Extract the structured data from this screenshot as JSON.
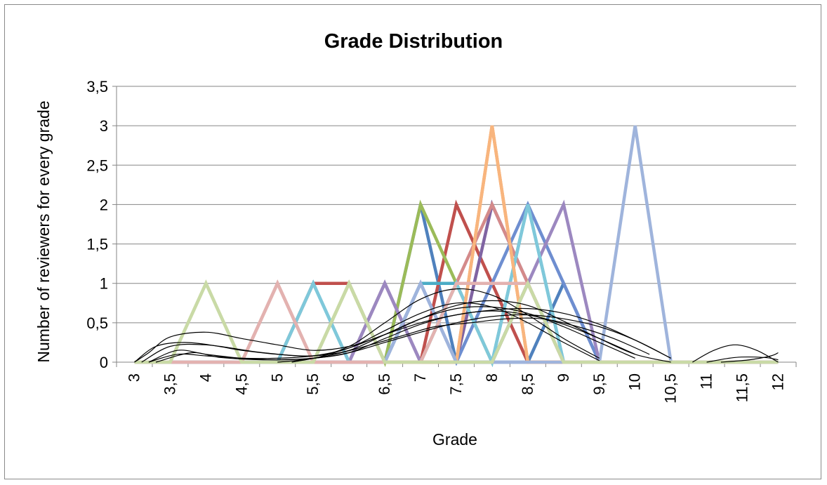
{
  "chart_data": {
    "type": "line",
    "title": "Grade Distribution",
    "xlabel": "Grade",
    "ylabel": "Number of reviewers for every grade",
    "x": [
      3,
      3.5,
      4,
      4.5,
      5,
      5.5,
      6,
      6.5,
      7,
      7.5,
      8,
      8.5,
      9,
      9.5,
      10,
      10.5,
      11,
      11.5,
      12
    ],
    "x_tick_labels": [
      "3",
      "3,5",
      "4",
      "4,5",
      "5",
      "5,5",
      "6",
      "6,5",
      "7",
      "7,5",
      "8",
      "8,5",
      "9",
      "9,5",
      "10",
      "10,5",
      "11",
      "11,5",
      "12"
    ],
    "ylim": [
      0,
      3.5
    ],
    "y_ticks": [
      0,
      0.5,
      1,
      1.5,
      2,
      2.5,
      3,
      3.5
    ],
    "y_tick_labels": [
      "0",
      "0,5",
      "1",
      "1,5",
      "2",
      "2,5",
      "3",
      "3,5"
    ],
    "grid": "horizontal",
    "legend": "none",
    "series": [
      {
        "color": "#4F81BD",
        "values": [
          0,
          0,
          0,
          0,
          0,
          0,
          0,
          0,
          2,
          0,
          0,
          0,
          1,
          0,
          0,
          0,
          0,
          0,
          0
        ]
      },
      {
        "color": "#C0504D",
        "values": [
          0,
          0,
          0,
          0,
          0,
          1,
          1,
          0,
          0,
          2,
          1,
          0,
          0,
          0,
          0,
          0,
          0,
          0,
          0
        ]
      },
      {
        "color": "#9BBB59",
        "values": [
          0,
          0,
          0,
          0,
          0,
          0,
          1,
          0,
          2,
          1,
          0,
          1,
          0,
          0,
          0,
          0,
          0,
          0,
          0
        ]
      },
      {
        "color": "#8064A2",
        "values": [
          0,
          0,
          0,
          0,
          0,
          0,
          0,
          1,
          0,
          0,
          2,
          1,
          0,
          0,
          0,
          0,
          0,
          0,
          0
        ]
      },
      {
        "color": "#4BACC6",
        "values": [
          0,
          0,
          0,
          0,
          0,
          1,
          0,
          0,
          1,
          1,
          0,
          2,
          0,
          0,
          0,
          0,
          0,
          0,
          0
        ]
      },
      {
        "color": "#F79646",
        "values": [
          0,
          0,
          0,
          0,
          0,
          0,
          0,
          0,
          0,
          0,
          3,
          0,
          0,
          0,
          0,
          0,
          0,
          0,
          0
        ]
      },
      {
        "color": "#6E8ED0",
        "values": [
          0,
          0,
          0,
          0,
          0,
          0,
          0,
          0,
          1,
          0,
          1,
          2,
          1,
          0,
          0,
          0,
          0,
          0,
          0
        ]
      },
      {
        "color": "#D48A8A",
        "values": [
          0,
          0,
          0,
          0,
          1,
          0,
          0,
          0,
          0,
          1,
          2,
          1,
          0,
          0,
          0,
          0,
          0,
          0,
          0
        ]
      },
      {
        "color": "#C3D69B",
        "values": [
          0,
          0,
          1,
          0,
          0,
          0,
          1,
          0,
          0,
          1,
          0,
          1,
          0,
          0,
          0,
          0,
          0,
          0,
          0
        ]
      },
      {
        "color": "#9C88C0",
        "values": [
          0,
          0,
          0,
          0,
          0,
          0,
          0,
          1,
          0,
          0,
          0,
          1,
          2,
          0,
          0,
          0,
          0,
          0,
          0
        ]
      },
      {
        "color": "#7FC8DA",
        "values": [
          0,
          0,
          0,
          0,
          0,
          1,
          0,
          0,
          0,
          1,
          0,
          2,
          0,
          0,
          0,
          0,
          0,
          0,
          0
        ]
      },
      {
        "color": "#F8B57E",
        "values": [
          0,
          0,
          0,
          0,
          0,
          0,
          0,
          0,
          0,
          0,
          3,
          0,
          0,
          0,
          0,
          0,
          0,
          0,
          0
        ]
      },
      {
        "color": "#9FB4DC",
        "values": [
          0,
          0,
          0,
          0,
          0,
          0,
          0,
          0,
          1,
          0,
          0,
          0,
          0,
          0,
          3,
          0,
          0,
          0,
          0
        ]
      },
      {
        "color": "#E3B2B0",
        "values": [
          0,
          0,
          0,
          0,
          1,
          0,
          0,
          0,
          0,
          1,
          1,
          1,
          0,
          0,
          0,
          0,
          0,
          0,
          0
        ]
      },
      {
        "color": "#C9DAA6",
        "values": [
          0,
          0,
          1,
          0,
          0,
          0,
          1,
          0,
          0,
          0,
          0,
          1,
          0,
          0,
          0,
          0,
          0,
          0,
          0
        ]
      }
    ],
    "fitted_curves": {
      "color": "#000000",
      "description_free": true,
      "curves": [
        {
          "x": [
            3.0,
            3.2,
            3.5,
            4.0,
            4.5,
            5.0,
            5.5,
            6.0,
            6.5,
            7.0,
            7.5,
            8.0,
            8.5,
            9.0,
            9.5,
            10.0,
            10.5
          ],
          "values": [
            0,
            0.12,
            0.32,
            0.38,
            0.3,
            0.22,
            0.15,
            0.2,
            0.35,
            0.55,
            0.72,
            0.78,
            0.72,
            0.52,
            0.3,
            0.1,
            0
          ]
        },
        {
          "x": [
            3.0,
            3.3,
            3.7,
            4.2,
            4.8,
            5.5,
            6.0,
            6.5,
            7.0,
            7.5,
            8.0,
            8.5,
            9.0,
            9.5
          ],
          "values": [
            0,
            0.2,
            0.25,
            0.2,
            0.12,
            0.08,
            0.2,
            0.5,
            0.8,
            0.93,
            0.85,
            0.6,
            0.3,
            0.05
          ]
        },
        {
          "x": [
            3.1,
            3.5,
            4.0,
            4.5,
            5.0,
            5.5,
            6.0,
            6.5,
            7.0,
            7.5,
            8.0,
            8.5,
            9.0,
            9.5,
            10.0
          ],
          "values": [
            0,
            0.2,
            0.22,
            0.15,
            0.1,
            0.08,
            0.15,
            0.35,
            0.55,
            0.68,
            0.7,
            0.62,
            0.45,
            0.25,
            0.05
          ]
        },
        {
          "x": [
            3.2,
            3.6,
            4.0,
            4.5,
            5.0,
            5.5,
            6.0,
            6.5,
            7.0,
            7.5,
            8.0,
            8.5,
            9.0,
            9.5,
            10.0
          ],
          "values": [
            0,
            0.15,
            0.1,
            0.05,
            0.03,
            0.05,
            0.12,
            0.3,
            0.48,
            0.6,
            0.65,
            0.6,
            0.48,
            0.3,
            0.1
          ]
        },
        {
          "x": [
            3.2,
            3.6,
            4.0,
            4.5,
            5.0,
            5.5,
            6.0,
            6.5,
            7.0,
            7.5,
            8.0,
            8.5,
            9.0,
            9.5
          ],
          "values": [
            0,
            0.1,
            0.08,
            0.05,
            0.05,
            0.08,
            0.18,
            0.4,
            0.62,
            0.75,
            0.7,
            0.5,
            0.25,
            0.02
          ]
        },
        {
          "x": [
            3.3,
            3.8,
            4.2,
            4.8,
            5.5,
            6.0,
            6.5,
            7.0,
            7.5,
            8.0,
            8.5,
            9.0,
            9.5,
            10.0,
            10.5
          ],
          "values": [
            0,
            0.12,
            0.06,
            0.03,
            0.05,
            0.12,
            0.25,
            0.38,
            0.5,
            0.58,
            0.6,
            0.55,
            0.45,
            0.28,
            0.05
          ]
        },
        {
          "x": [
            5.0,
            5.5,
            6.0,
            6.5,
            7.0,
            7.5,
            8.0,
            8.5,
            9.0,
            9.5,
            10.0,
            10.5
          ],
          "values": [
            0,
            0.05,
            0.18,
            0.35,
            0.5,
            0.6,
            0.66,
            0.68,
            0.62,
            0.48,
            0.28,
            0.05
          ]
        },
        {
          "x": [
            5.2,
            5.8,
            6.3,
            6.8,
            7.2,
            7.7,
            8.2,
            8.7,
            9.2,
            9.7,
            10.2
          ],
          "values": [
            0,
            0.1,
            0.22,
            0.35,
            0.45,
            0.5,
            0.55,
            0.55,
            0.45,
            0.3,
            0.1
          ]
        },
        {
          "x": [
            10.8,
            11.1,
            11.4,
            11.7,
            12.0
          ],
          "values": [
            0,
            0.15,
            0.22,
            0.15,
            0
          ]
        },
        {
          "x": [
            11.0,
            11.4,
            11.8,
            12.0
          ],
          "values": [
            0,
            0.06,
            0.06,
            0.03
          ]
        },
        {
          "x": [
            11.2,
            11.6,
            11.9,
            12.0
          ],
          "values": [
            0,
            0.03,
            0.08,
            0.12
          ]
        }
      ]
    }
  }
}
